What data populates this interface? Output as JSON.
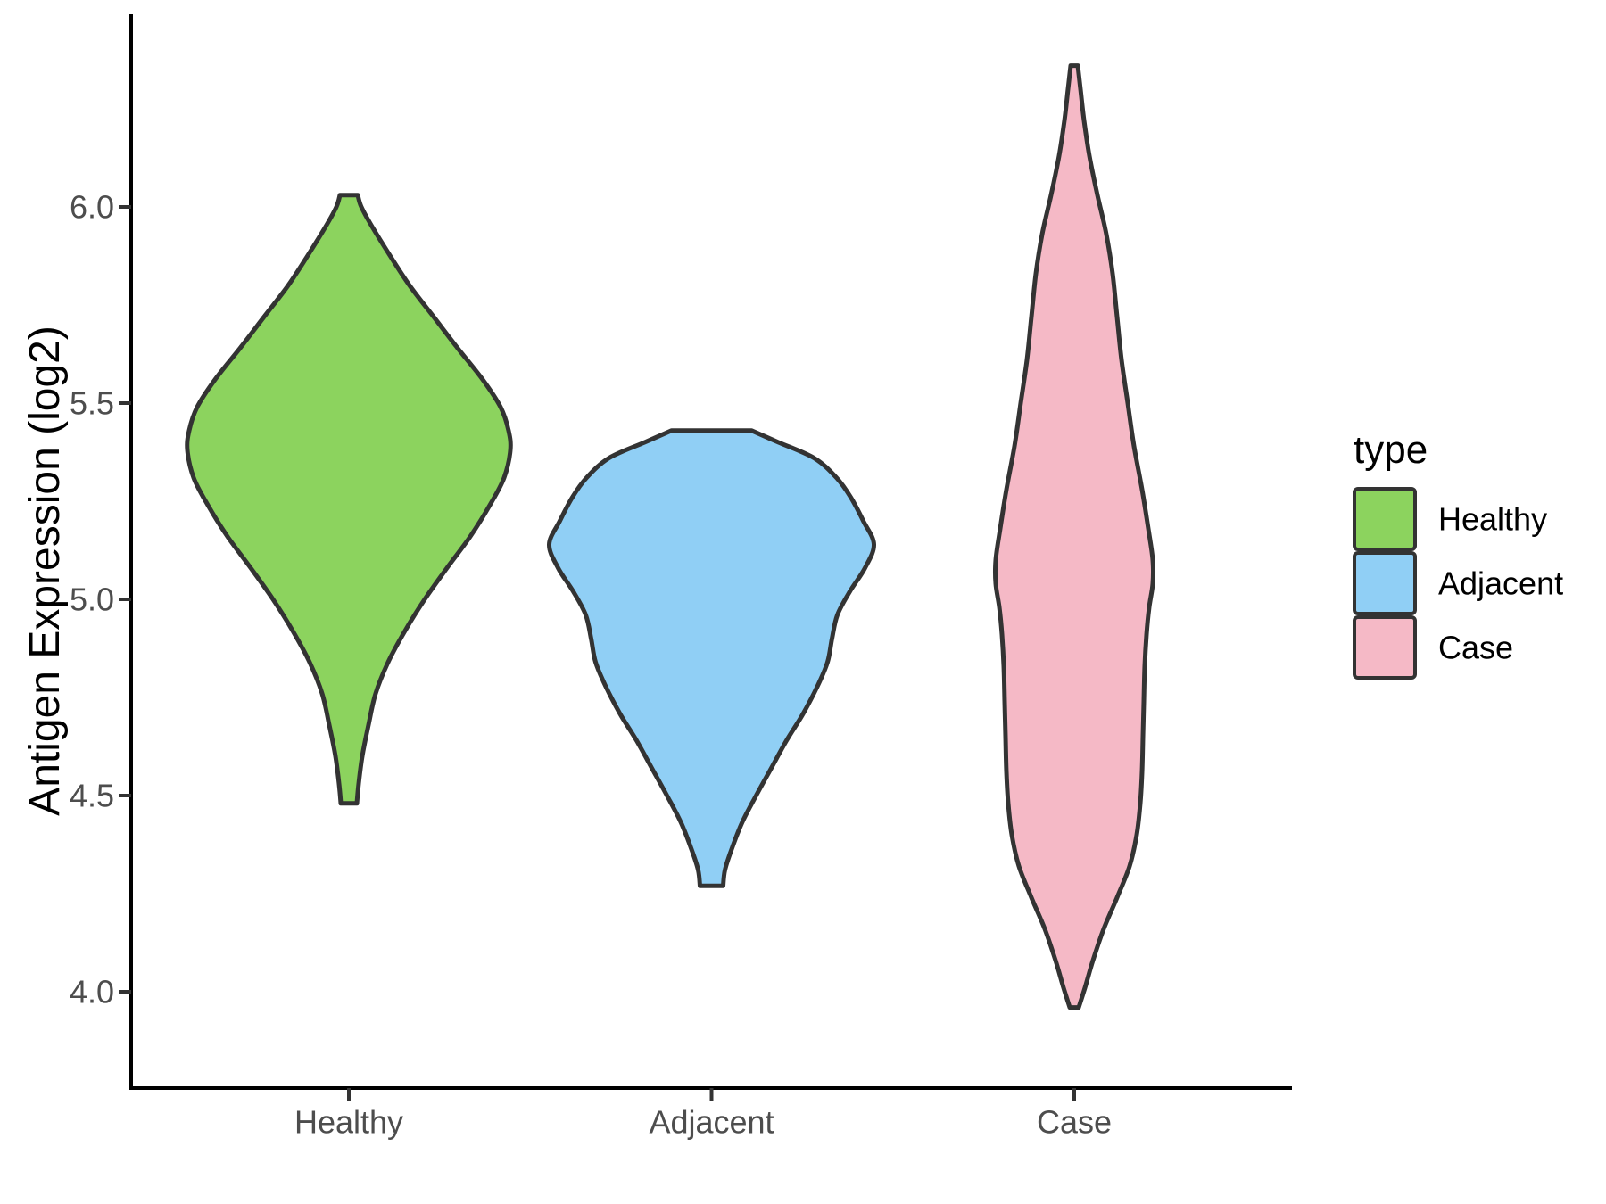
{
  "chart_data": {
    "type": "violin",
    "title": "",
    "ylabel": "Antigen Expression (log2)",
    "xlabel": "",
    "categories": [
      "Healthy",
      "Adjacent",
      "Case"
    ],
    "y_ticks": [
      {
        "value": 6.0,
        "label": "6.0"
      },
      {
        "value": 5.5,
        "label": "5.5"
      },
      {
        "value": 5.0,
        "label": "5.0"
      },
      {
        "value": 4.5,
        "label": "4.5"
      },
      {
        "value": 4.0,
        "label": "4.0"
      }
    ],
    "ylim": [
      3.75,
      6.49
    ],
    "grid": false,
    "panel_background": "#FFFFFF",
    "outline_color": "#333333",
    "legend": {
      "title": "type",
      "position": "right",
      "entries": [
        {
          "label": "Healthy",
          "color": "#8CD35E"
        },
        {
          "label": "Adjacent",
          "color": "#90CFF5"
        },
        {
          "label": "Case",
          "color": "#F5B9C6"
        }
      ]
    },
    "profile_note": "profile = [expression_value_log2, half_width_px]; violins trimmed to data range",
    "series": [
      {
        "name": "Healthy",
        "color": "#8CD35E",
        "min": 4.48,
        "max": 6.03,
        "peak": 5.4,
        "profile": [
          [
            6.03,
            10
          ],
          [
            6.0,
            14
          ],
          [
            5.95,
            26
          ],
          [
            5.88,
            45
          ],
          [
            5.8,
            68
          ],
          [
            5.72,
            95
          ],
          [
            5.64,
            122
          ],
          [
            5.56,
            150
          ],
          [
            5.49,
            170
          ],
          [
            5.43,
            179
          ],
          [
            5.38,
            181
          ],
          [
            5.31,
            174
          ],
          [
            5.24,
            158
          ],
          [
            5.16,
            136
          ],
          [
            5.08,
            110
          ],
          [
            5.0,
            85
          ],
          [
            4.92,
            63
          ],
          [
            4.84,
            44
          ],
          [
            4.76,
            30
          ],
          [
            4.68,
            22
          ],
          [
            4.6,
            15
          ],
          [
            4.53,
            11
          ],
          [
            4.48,
            9
          ]
        ]
      },
      {
        "name": "Adjacent",
        "color": "#90CFF5",
        "min": 4.27,
        "max": 5.43,
        "peak": 5.14,
        "profile": [
          [
            5.43,
            45
          ],
          [
            5.4,
            75
          ],
          [
            5.36,
            115
          ],
          [
            5.31,
            140
          ],
          [
            5.26,
            156
          ],
          [
            5.2,
            170
          ],
          [
            5.14,
            182
          ],
          [
            5.08,
            172
          ],
          [
            5.02,
            155
          ],
          [
            4.96,
            141
          ],
          [
            4.9,
            135
          ],
          [
            4.84,
            130
          ],
          [
            4.78,
            119
          ],
          [
            4.71,
            103
          ],
          [
            4.64,
            84
          ],
          [
            4.57,
            67
          ],
          [
            4.5,
            50
          ],
          [
            4.43,
            34
          ],
          [
            4.36,
            22
          ],
          [
            4.31,
            15
          ],
          [
            4.27,
            13
          ]
        ]
      },
      {
        "name": "Case",
        "color": "#F5B9C6",
        "min": 3.96,
        "max": 6.36,
        "peak": 5.07,
        "profile": [
          [
            6.36,
            4
          ],
          [
            6.3,
            7
          ],
          [
            6.22,
            11
          ],
          [
            6.13,
            17
          ],
          [
            6.03,
            26
          ],
          [
            5.93,
            36
          ],
          [
            5.83,
            43
          ],
          [
            5.72,
            48
          ],
          [
            5.61,
            53
          ],
          [
            5.5,
            60
          ],
          [
            5.39,
            67
          ],
          [
            5.28,
            76
          ],
          [
            5.18,
            83
          ],
          [
            5.1,
            88
          ],
          [
            5.04,
            88
          ],
          [
            4.98,
            84
          ],
          [
            4.91,
            81
          ],
          [
            4.83,
            79
          ],
          [
            4.74,
            78
          ],
          [
            4.65,
            77
          ],
          [
            4.56,
            76
          ],
          [
            4.48,
            74
          ],
          [
            4.4,
            70
          ],
          [
            4.32,
            62
          ],
          [
            4.24,
            48
          ],
          [
            4.16,
            33
          ],
          [
            4.08,
            21
          ],
          [
            4.01,
            12
          ],
          [
            3.96,
            5
          ]
        ]
      }
    ]
  }
}
